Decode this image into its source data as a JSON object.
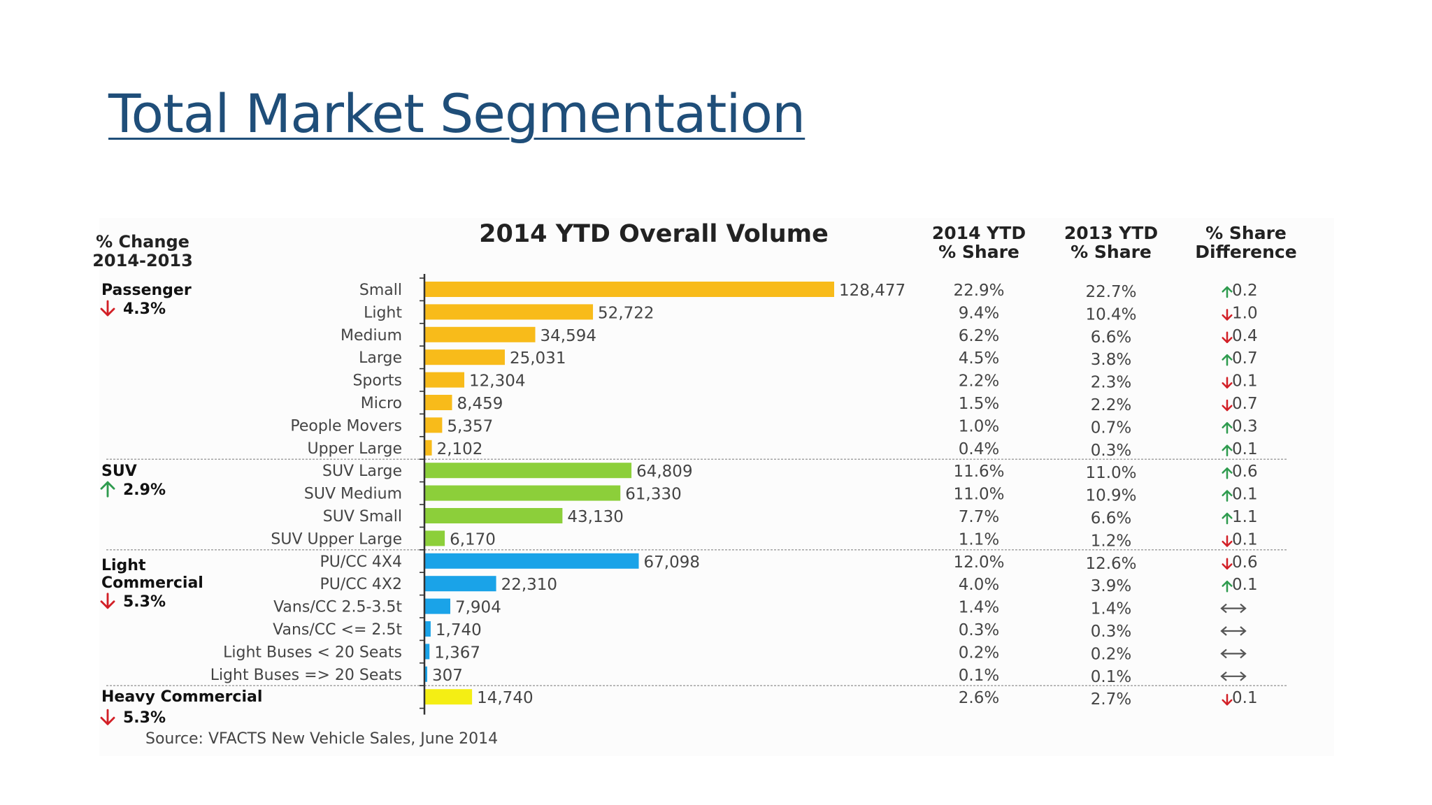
{
  "slide": {
    "title": "Total Market Segmentation"
  },
  "chart_data": {
    "type": "bar",
    "orientation": "horizontal",
    "title": "2014 YTD Overall Volume",
    "headers": {
      "change_line1": "% Change",
      "change_line2": "2014-2013",
      "share2014_line1": "2014 YTD",
      "share2014_line2": "% Share",
      "share2013_line1": "2013 YTD",
      "share2013_line2": "% Share",
      "diff_line1": "% Share",
      "diff_line2": "Difference"
    },
    "groups": [
      {
        "name_lines": [
          "Passenger"
        ],
        "change": "4.3%",
        "direction": "down",
        "color": "#f8bb1a",
        "items": [
          {
            "label": "Small",
            "value": 128477,
            "display": "128,477",
            "share_2014": "22.9%",
            "share_2013": "22.7%",
            "diff": "0.2",
            "diff_dir": "up"
          },
          {
            "label": "Light",
            "value": 52722,
            "display": "52,722",
            "share_2014": "9.4%",
            "share_2013": "10.4%",
            "diff": "1.0",
            "diff_dir": "down"
          },
          {
            "label": "Medium",
            "value": 34594,
            "display": "34,594",
            "share_2014": "6.2%",
            "share_2013": "6.6%",
            "diff": "0.4",
            "diff_dir": "down"
          },
          {
            "label": "Large",
            "value": 25031,
            "display": "25,031",
            "share_2014": "4.5%",
            "share_2013": "3.8%",
            "diff": "0.7",
            "diff_dir": "up"
          },
          {
            "label": "Sports",
            "value": 12304,
            "display": "12,304",
            "share_2014": "2.2%",
            "share_2013": "2.3%",
            "diff": "0.1",
            "diff_dir": "down"
          },
          {
            "label": "Micro",
            "value": 8459,
            "display": "8,459",
            "share_2014": "1.5%",
            "share_2013": "2.2%",
            "diff": "0.7",
            "diff_dir": "down"
          },
          {
            "label": "People Movers",
            "value": 5357,
            "display": "5,357",
            "share_2014": "1.0%",
            "share_2013": "0.7%",
            "diff": "0.3",
            "diff_dir": "up"
          },
          {
            "label": "Upper Large",
            "value": 2102,
            "display": "2,102",
            "share_2014": "0.4%",
            "share_2013": "0.3%",
            "diff": "0.1",
            "diff_dir": "up"
          }
        ]
      },
      {
        "name_lines": [
          "SUV"
        ],
        "change": "2.9%",
        "direction": "up",
        "color": "#8ccf3a",
        "items": [
          {
            "label": "SUV Large",
            "value": 64809,
            "display": "64,809",
            "share_2014": "11.6%",
            "share_2013": "11.0%",
            "diff": "0.6",
            "diff_dir": "up"
          },
          {
            "label": "SUV Medium",
            "value": 61330,
            "display": "61,330",
            "share_2014": "11.0%",
            "share_2013": "10.9%",
            "diff": "0.1",
            "diff_dir": "up"
          },
          {
            "label": "SUV Small",
            "value": 43130,
            "display": "43,130",
            "share_2014": "7.7%",
            "share_2013": "6.6%",
            "diff": "1.1",
            "diff_dir": "up"
          },
          {
            "label": "SUV Upper Large",
            "value": 6170,
            "display": "6,170",
            "share_2014": "1.1%",
            "share_2013": "1.2%",
            "diff": "0.1",
            "diff_dir": "down"
          }
        ]
      },
      {
        "name_lines": [
          "Light",
          "Commercial"
        ],
        "change": "5.3%",
        "direction": "down",
        "color": "#1aa3e8",
        "items": [
          {
            "label": "PU/CC 4X4",
            "value": 67098,
            "display": "67,098",
            "share_2014": "12.0%",
            "share_2013": "12.6%",
            "diff": "0.6",
            "diff_dir": "down"
          },
          {
            "label": "PU/CC 4X2",
            "value": 22310,
            "display": "22,310",
            "share_2014": "4.0%",
            "share_2013": "3.9%",
            "diff": "0.1",
            "diff_dir": "up"
          },
          {
            "label": "Vans/CC 2.5-3.5t",
            "value": 7904,
            "display": "7,904",
            "share_2014": "1.4%",
            "share_2013": "1.4%",
            "diff": "",
            "diff_dir": "flat"
          },
          {
            "label": "Vans/CC <= 2.5t",
            "value": 1740,
            "display": "1,740",
            "share_2014": "0.3%",
            "share_2013": "0.3%",
            "diff": "",
            "diff_dir": "flat"
          },
          {
            "label": "Light Buses < 20 Seats",
            "value": 1367,
            "display": "1,367",
            "share_2014": "0.2%",
            "share_2013": "0.2%",
            "diff": "",
            "diff_dir": "flat"
          },
          {
            "label": "Light Buses => 20 Seats",
            "value": 307,
            "display": "307",
            "share_2014": "0.1%",
            "share_2013": "0.1%",
            "diff": "",
            "diff_dir": "flat"
          }
        ]
      },
      {
        "name_lines": [
          "Heavy Commercial"
        ],
        "change": "5.3%",
        "direction": "down",
        "color": "#f4ee14",
        "items": [
          {
            "label": "",
            "value": 14740,
            "display": "14,740",
            "share_2014": "2.6%",
            "share_2013": "2.7%",
            "diff": "0.1",
            "diff_dir": "down"
          }
        ]
      }
    ],
    "source": "Source: VFACTS New Vehicle Sales, June 2014",
    "colors": {
      "up": "#2e9b4e",
      "down": "#d21f26",
      "neutral": "#555555"
    }
  }
}
